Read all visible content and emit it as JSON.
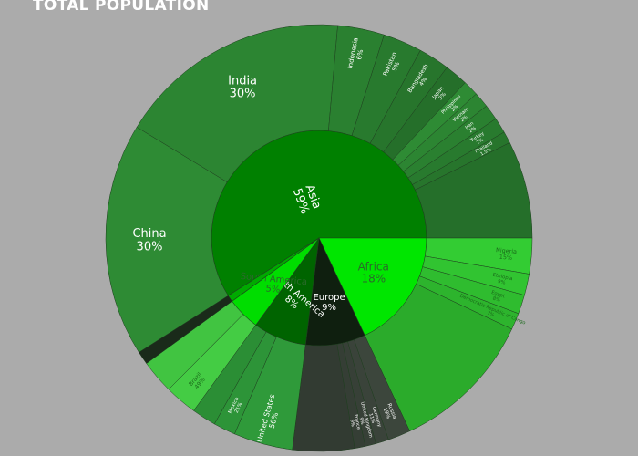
{
  "chart_title": "TOTAL POPULATION",
  "chart_data": {
    "type": "sunburst",
    "title": "TOTAL POPULATION",
    "colors": {
      "Asia": "#008000",
      "Africa": "#00e600",
      "Europe": "#0f1f0f",
      "North America": "#006400",
      "South America": "#00dd00",
      "Oceania": "#00aa00"
    },
    "continents": [
      {
        "name": "Asia",
        "label": "Asia",
        "value": 59,
        "text_color": "#ffffff",
        "outer_color": "#2e8b34",
        "children": [
          {
            "name": "China",
            "label": "China",
            "value": 30
          },
          {
            "name": "India",
            "label": "India",
            "value": 30
          },
          {
            "name": "Indonesia",
            "label": "Indonesia",
            "value": 6
          },
          {
            "name": "Pakistan",
            "label": "Pakistan",
            "value": 5
          },
          {
            "name": "Bangladesh",
            "label": "Bangladesh",
            "value": 4
          },
          {
            "name": "Japan",
            "label": "Japan",
            "value": 3
          },
          {
            "name": "Philippines",
            "label": "Philippines",
            "value": 2
          },
          {
            "name": "Vietnam",
            "label": "Vietnam",
            "value": 2
          },
          {
            "name": "Iran",
            "label": "Iran",
            "value": 2
          },
          {
            "name": "Turkey",
            "label": "Turkey",
            "value": 2
          },
          {
            "name": "Thailand",
            "label": "Thailand",
            "value": 1.5
          },
          {
            "name": "Asia-rest",
            "label": "",
            "value": 12.5
          }
        ]
      },
      {
        "name": "Africa",
        "label": "Africa",
        "value": 18,
        "text_color": "#2a6a2a",
        "outer_color": "#33cc33",
        "children": [
          {
            "name": "Nigeria",
            "label": "Nigeria",
            "value": 15
          },
          {
            "name": "Ethiopia",
            "label": "Ethiopia",
            "value": 9
          },
          {
            "name": "Egypt",
            "label": "Egypt",
            "value": 8
          },
          {
            "name": "Democratic Republic of Congo",
            "label": "Democratic Republic of Congo",
            "value": 7
          },
          {
            "name": "Africa-rest",
            "label": "",
            "value": 61
          }
        ]
      },
      {
        "name": "Europe",
        "label": "Europe",
        "value": 9,
        "text_color": "#ffffff",
        "outer_color": "#3c463c",
        "children": [
          {
            "name": "Russia",
            "label": "Russia",
            "value": 19
          },
          {
            "name": "Germany",
            "label": "Germany",
            "value": 11
          },
          {
            "name": "United Kingdom",
            "label": "United Kingdom",
            "value": 9
          },
          {
            "name": "France",
            "label": "France",
            "value": 9
          },
          {
            "name": "Europe-rest",
            "label": "",
            "value": 52
          }
        ]
      },
      {
        "name": "North America",
        "label": "North America",
        "value": 8,
        "text_color": "#ffffff",
        "outer_color": "#2f9a3a",
        "children": [
          {
            "name": "United States",
            "label": "United States",
            "value": 56
          },
          {
            "name": "Mexico",
            "label": "Mexico",
            "value": 21
          },
          {
            "name": "North-America-rest",
            "label": "",
            "value": 23
          }
        ]
      },
      {
        "name": "South America",
        "label": "South America",
        "value": 5,
        "text_color": "#2a6a2a",
        "outer_color": "#44cc44",
        "children": [
          {
            "name": "Brazil",
            "label": "Brazil",
            "value": 49
          },
          {
            "name": "South-America-rest",
            "label": "",
            "value": 51
          }
        ]
      },
      {
        "name": "Oceania",
        "label": "",
        "value": 1,
        "text_color": "#ffffff",
        "outer_color": "#1a2a1a",
        "children": [
          {
            "name": "Oceania-all",
            "label": "",
            "value": 100
          }
        ]
      }
    ]
  }
}
